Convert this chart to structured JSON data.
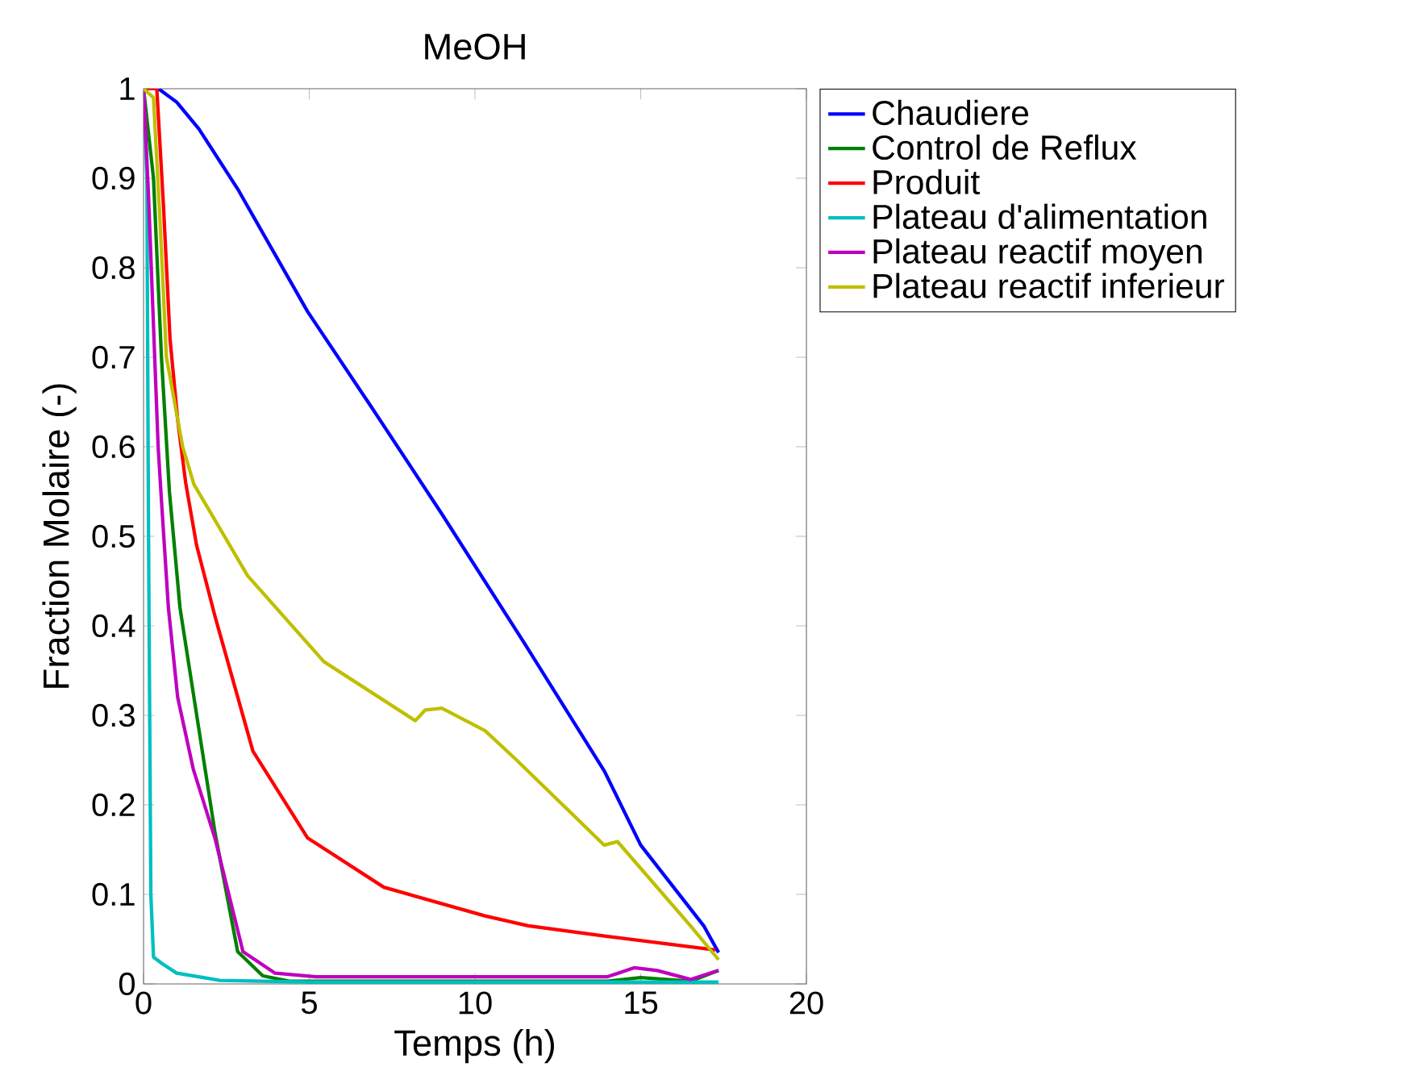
{
  "chart_data": {
    "type": "line",
    "title": "MeOH",
    "xlabel": "Temps (h)",
    "ylabel": "Fraction Molaire (-)",
    "xlim": [
      0,
      20
    ],
    "ylim": [
      0,
      1
    ],
    "xticks": [
      0,
      5,
      10,
      15,
      20
    ],
    "yticks": [
      0,
      0.1,
      0.2,
      0.3,
      0.4,
      0.5,
      0.6,
      0.7,
      0.8,
      0.9,
      1
    ],
    "grid": false,
    "legend": "right",
    "marker": "none",
    "line_style": "solid",
    "series": [
      {
        "name": "Chaudiere",
        "color": "#0000ff",
        "x": [
          0.2,
          0.45,
          1.0,
          1.67,
          2.84,
          4.95,
          6.9,
          9.0,
          11.5,
          13.9,
          15.0,
          16.9,
          17.35
        ],
        "values": [
          1.0,
          1.0,
          0.985,
          0.955,
          0.888,
          0.751,
          0.643,
          0.525,
          0.38,
          0.238,
          0.155,
          0.065,
          0.035
        ]
      },
      {
        "name": "Control de Reflux",
        "color": "#008000",
        "x": [
          0,
          0.3,
          0.54,
          0.78,
          1.1,
          1.52,
          2.16,
          2.84,
          3.6,
          4.4,
          8,
          14,
          15,
          16.5,
          17.35
        ],
        "values": [
          1.0,
          0.9,
          0.7,
          0.55,
          0.42,
          0.32,
          0.168,
          0.036,
          0.009,
          0.003,
          0.003,
          0.003,
          0.007,
          0.003,
          0.015
        ]
      },
      {
        "name": "Produit",
        "color": "#ff0000",
        "x": [
          0,
          0.4,
          0.6,
          0.8,
          1.03,
          1.27,
          1.6,
          2.16,
          3.3,
          4.95,
          7.25,
          10.3,
          11.6,
          14,
          17.25
        ],
        "values": [
          1.0,
          1.0,
          0.87,
          0.72,
          0.63,
          0.56,
          0.49,
          0.41,
          0.26,
          0.163,
          0.108,
          0.076,
          0.065,
          0.053,
          0.038
        ]
      },
      {
        "name": "Plateau d'alimentation",
        "color": "#00bfbf",
        "x": [
          0,
          0.1,
          0.15,
          0.22,
          0.3,
          0.55,
          1.0,
          2.3,
          5,
          17.35
        ],
        "values": [
          1.0,
          0.9,
          0.5,
          0.1,
          0.03,
          0.023,
          0.012,
          0.004,
          0.002,
          0.002
        ]
      },
      {
        "name": "Plateau reactif moyen",
        "color": "#bf00bf",
        "x": [
          0,
          0.15,
          0.44,
          0.54,
          0.75,
          1.03,
          1.5,
          2.16,
          3.0,
          3.97,
          5.2,
          10,
          14,
          14.8,
          15.5,
          16.5,
          17.35
        ],
        "values": [
          1.0,
          0.88,
          0.6,
          0.54,
          0.42,
          0.32,
          0.24,
          0.162,
          0.036,
          0.012,
          0.008,
          0.008,
          0.008,
          0.018,
          0.015,
          0.005,
          0.015
        ]
      },
      {
        "name": "Plateau reactif inferieur",
        "color": "#bfbf00",
        "x": [
          0,
          0.3,
          0.5,
          0.69,
          1.18,
          1.52,
          3.14,
          5.44,
          8.2,
          8.5,
          9.0,
          10.3,
          11.2,
          13.9,
          14.3,
          16.5,
          17.35
        ],
        "values": [
          1.0,
          0.99,
          0.85,
          0.7,
          0.6,
          0.558,
          0.456,
          0.36,
          0.294,
          0.306,
          0.308,
          0.283,
          0.252,
          0.155,
          0.159,
          0.065,
          0.027
        ]
      }
    ]
  }
}
